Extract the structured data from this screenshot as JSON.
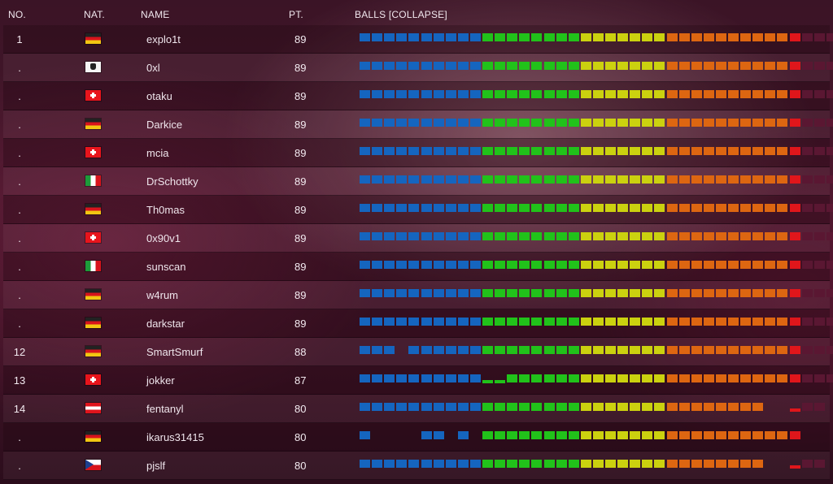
{
  "header": {
    "no": "NO.",
    "nat": "NAT.",
    "name": "NAME",
    "pt": "PT.",
    "balls": "BALLS [COLLAPSE]"
  },
  "colors": {
    "blue": "#1565bf",
    "green": "#21c21a",
    "yellow": "#cbd10f",
    "orange": "#dd6611",
    "red": "#e0161b",
    "dark": "#5a1732"
  },
  "ball_legend": "b = blue, g = green, y = yellow, o = orange, r = red, d = dark/unsolved, s = short bar, _ = empty",
  "rows": [
    {
      "no": "1",
      "flag": "de",
      "name": "explo1t",
      "pt": "89",
      "balls": "bbbbbbbbbbggggggggyyyyyyyoooooooooorddd"
    },
    {
      "no": ".",
      "flag": "pirate",
      "name": "0xl",
      "pt": "89",
      "balls": "bbbbbbbbbbggggggggyyyyyyyoooooooooorddd"
    },
    {
      "no": ".",
      "flag": "ch",
      "name": "otaku",
      "pt": "89",
      "balls": "bbbbbbbbbbggggggggyyyyyyyoooooooooorddd"
    },
    {
      "no": ".",
      "flag": "de",
      "name": "Darkice",
      "pt": "89",
      "balls": "bbbbbbbbbbggggggggyyyyyyyoooooooooorddd"
    },
    {
      "no": ".",
      "flag": "ch",
      "name": "mcia",
      "pt": "89",
      "balls": "bbbbbbbbbbggggggggyyyyyyyoooooooooorddd"
    },
    {
      "no": ".",
      "flag": "it",
      "name": "DrSchottky",
      "pt": "89",
      "balls": "bbbbbbbbbbggggggggyyyyyyyoooooooooorddd"
    },
    {
      "no": ".",
      "flag": "de",
      "name": "Th0mas",
      "pt": "89",
      "balls": "bbbbbbbbbbggggggggyyyyyyyoooooooooorddd"
    },
    {
      "no": ".",
      "flag": "ch",
      "name": "0x90v1",
      "pt": "89",
      "balls": "bbbbbbbbbbggggggggyyyyyyyoooooooooorddd"
    },
    {
      "no": ".",
      "flag": "it",
      "name": "sunscan",
      "pt": "89",
      "balls": "bbbbbbbbbbggggggggyyyyyyyoooooooooorddd"
    },
    {
      "no": ".",
      "flag": "de",
      "name": "w4rum",
      "pt": "89",
      "balls": "bbbbbbbbbbggggggggyyyyyyyoooooooooorddd"
    },
    {
      "no": ".",
      "flag": "de",
      "name": "darkstar",
      "pt": "89",
      "balls": "bbbbbbbbbbggggggggyyyyyyyoooooooooorddd"
    },
    {
      "no": "12",
      "flag": "de",
      "name": "SmartSmurf",
      "pt": "88",
      "balls": "bbb_bbbbbbggggggggyyyyyyyoooooooooorddd"
    },
    {
      "no": "13",
      "flag": "ch",
      "name": "jokker",
      "pt": "87",
      "balls": "bbbbbbbbbbssggggggyyyyyyyoooooooooorddd"
    },
    {
      "no": "14",
      "flag": "at",
      "name": "fentanyl",
      "pt": "80",
      "balls": "bbbbbbbbbbggggggggyyyyyyyoooooooo__sdd"
    },
    {
      "no": ".",
      "flag": "de",
      "name": "ikarus31415",
      "pt": "80",
      "balls": "b____bb_b_ggggggggyyyyyyyoooooooooor___"
    },
    {
      "no": ".",
      "flag": "cz",
      "name": "pjslf",
      "pt": "80",
      "balls": "bbbbbbbbbbggggggggyyyyyyyoooooooo__sdd"
    }
  ]
}
